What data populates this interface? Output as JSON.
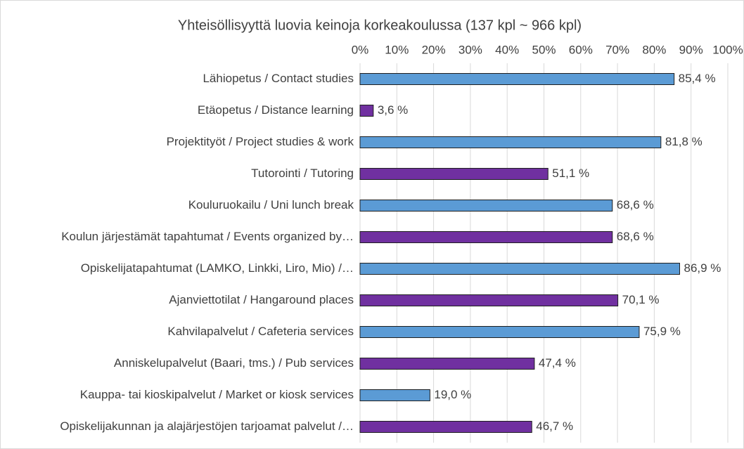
{
  "chart_data": {
    "type": "barh",
    "title": "Yhteisöllisyyttä luovia keinoja korkeakoulussa (137 kpl ~ 966 kpl)",
    "categories": [
      "Lähiopetus / Contact studies",
      "Etäopetus / Distance learning",
      "Projektityöt / Project studies & work",
      "Tutorointi / Tutoring",
      "Kouluruokailu / Uni lunch break",
      "Koulun järjestämät tapahtumat / Events organized by…",
      "Opiskelijatapahtumat (LAMKO, Linkki, Liro, Mio) /…",
      "Ajanviettotilat / Hangaround places",
      "Kahvilapalvelut / Cafeteria services",
      "Anniskelupalvelut (Baari, tms.) / Pub services",
      "Kauppa- tai kioskipalvelut / Market or kiosk services",
      "Opiskelijakunnan ja alajärjestöjen tarjoamat palvelut /…"
    ],
    "values": [
      85.4,
      3.6,
      81.8,
      51.1,
      68.6,
      68.6,
      86.9,
      70.1,
      75.9,
      47.4,
      19.0,
      46.7
    ],
    "value_labels": [
      "85,4 %",
      "3,6 %",
      "81,8 %",
      "51,1 %",
      "68,6 %",
      "68,6 %",
      "86,9 %",
      "70,1 %",
      "75,9 %",
      "47,4 %",
      "19,0 %",
      "46,7 %"
    ],
    "colors": [
      "#5b9bd5",
      "#7030a0",
      "#5b9bd5",
      "#7030a0",
      "#5b9bd5",
      "#7030a0",
      "#5b9bd5",
      "#7030a0",
      "#5b9bd5",
      "#7030a0",
      "#5b9bd5",
      "#7030a0"
    ],
    "xlim": [
      0,
      100
    ],
    "xticks": [
      {
        "value": 0,
        "label": "0%"
      },
      {
        "value": 10,
        "label": "10%"
      },
      {
        "value": 20,
        "label": "20%"
      },
      {
        "value": 30,
        "label": "30%"
      },
      {
        "value": 40,
        "label": "40%"
      },
      {
        "value": 50,
        "label": "50%"
      },
      {
        "value": 60,
        "label": "60%"
      },
      {
        "value": 70,
        "label": "70%"
      },
      {
        "value": 80,
        "label": "80%"
      },
      {
        "value": 90,
        "label": "90%"
      },
      {
        "value": 100,
        "label": "100%"
      }
    ],
    "grid": true
  }
}
